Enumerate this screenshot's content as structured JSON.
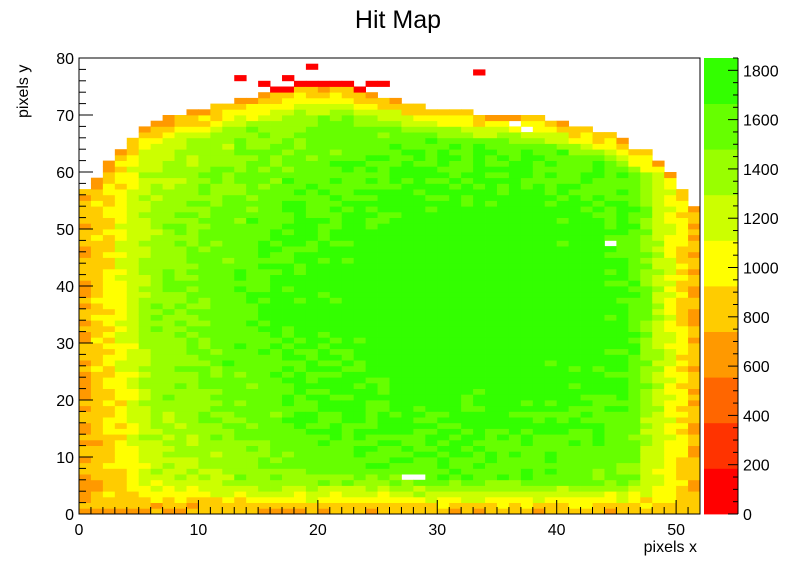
{
  "chart_data": {
    "type": "heatmap",
    "title": "Hit Map",
    "xlabel": "pixels x",
    "ylabel": "pixels y",
    "xlim": [
      0,
      52
    ],
    "ylim": [
      0,
      80
    ],
    "zlim": [
      0,
      1850
    ],
    "bins_x": 52,
    "bins_y": 80,
    "x_ticks": [
      0,
      10,
      20,
      30,
      40,
      50
    ],
    "y_ticks": [
      0,
      10,
      20,
      30,
      40,
      50,
      60,
      70,
      80
    ],
    "z_ticks": [
      0,
      200,
      400,
      600,
      800,
      1000,
      1200,
      1400,
      1600,
      1800
    ],
    "grid": false,
    "colors": {
      "palette": [
        "#ff0000",
        "#ff3300",
        "#ff6600",
        "#ff9900",
        "#ffcc00",
        "#ffff00",
        "#ccff00",
        "#99ff00",
        "#66ff00",
        "#33ff00"
      ],
      "axis": "#000000",
      "background": "#ffffff"
    },
    "features": {
      "center": [
        33,
        37
      ],
      "peak_value": 1820,
      "edge_value": 700,
      "top_boundary": [
        [
          1,
          57
        ],
        [
          2,
          60
        ],
        [
          3,
          63
        ],
        [
          4,
          65
        ],
        [
          5,
          67
        ],
        [
          6,
          68
        ],
        [
          8,
          70
        ],
        [
          10,
          71
        ],
        [
          12,
          72
        ],
        [
          14,
          73
        ],
        [
          16,
          74
        ],
        [
          18,
          75
        ],
        [
          20,
          75
        ],
        [
          22,
          75
        ],
        [
          24,
          74
        ],
        [
          26,
          73
        ],
        [
          28,
          72
        ],
        [
          30,
          71
        ],
        [
          32,
          71
        ],
        [
          34,
          70
        ],
        [
          36,
          70
        ],
        [
          38,
          70
        ],
        [
          40,
          69
        ],
        [
          42,
          68
        ],
        [
          44,
          67
        ],
        [
          46,
          65
        ],
        [
          48,
          63
        ],
        [
          50,
          59
        ],
        [
          51,
          55
        ],
        [
          52,
          52
        ]
      ],
      "red_cells": [
        [
          13,
          76
        ],
        [
          15,
          75
        ],
        [
          16,
          74
        ],
        [
          17,
          74
        ],
        [
          17,
          76
        ],
        [
          18,
          75
        ],
        [
          19,
          75
        ],
        [
          20,
          75
        ],
        [
          21,
          75
        ],
        [
          22,
          75
        ],
        [
          23,
          74
        ],
        [
          24,
          75
        ],
        [
          25,
          75
        ],
        [
          19,
          78
        ],
        [
          33,
          77
        ]
      ],
      "empty_cells": [
        [
          27,
          6
        ],
        [
          28,
          6
        ],
        [
          44,
          47
        ],
        [
          52,
          52
        ],
        [
          36,
          68
        ],
        [
          37,
          67
        ],
        [
          46,
          64
        ]
      ]
    }
  }
}
